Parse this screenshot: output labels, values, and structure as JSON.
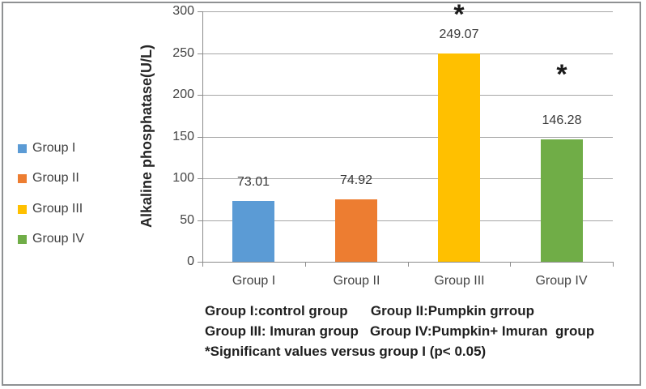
{
  "chart_data": {
    "type": "bar",
    "title": "",
    "xlabel": "",
    "ylabel": "Alkaline phosphatase(U/L)",
    "categories": [
      "Group I",
      "Group II",
      "Group III",
      "Group IV"
    ],
    "values": [
      73.01,
      74.92,
      249.07,
      146.28
    ],
    "value_labels": [
      "73.01",
      "74.92",
      "249.07",
      "146.28"
    ],
    "bar_colors": [
      "#5B9BD5",
      "#ED7D31",
      "#FFC000",
      "#70AD47"
    ],
    "ylim": [
      0,
      300
    ],
    "yticks": [
      0,
      50,
      100,
      150,
      200,
      250,
      300
    ],
    "grid": true,
    "legend_position": "left",
    "legend_labels": [
      "Group I",
      "Group II",
      "Group III",
      "Group IV"
    ],
    "annotations": [
      {
        "text": "*",
        "category_index": 2,
        "y_value": 298
      },
      {
        "text": "*",
        "category_index": 3,
        "y_value": 226
      }
    ]
  },
  "footnotes": [
    "Group I:control group      Group II:Pumpkin grroup",
    "Group III: Imuran group   Group IV:Pumpkin+ Imuran  group",
    "*Significant values versus group I (p< 0.05)"
  ],
  "colors": {
    "gridline": "#A6A6A6",
    "axis": "#8C8C8C",
    "frame_border": "#8F9193",
    "annotation": "#1A1A1A"
  }
}
